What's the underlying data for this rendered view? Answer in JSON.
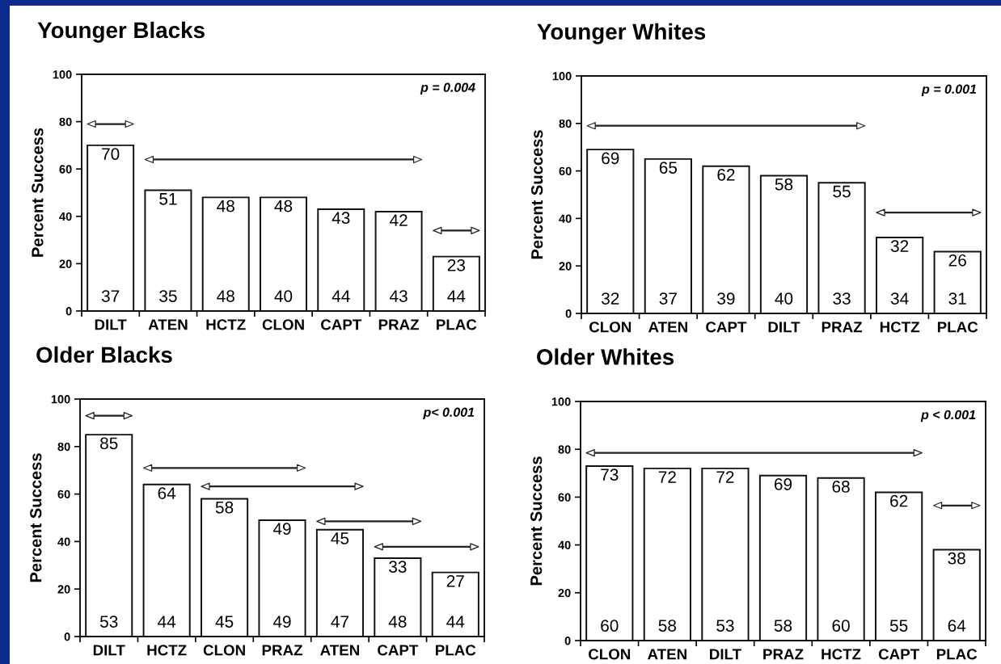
{
  "chart_data": [
    {
      "type": "bar",
      "title": "Younger Blacks",
      "ylabel": "Percent Success",
      "categories": [
        "DILT",
        "ATEN",
        "HCTZ",
        "CLON",
        "CAPT",
        "PRAZ",
        "PLAC"
      ],
      "values": [
        70,
        51,
        48,
        48,
        43,
        42,
        23
      ],
      "color": "#ffffff",
      "ylim": [
        0,
        100
      ],
      "yticks": [
        0,
        20,
        40,
        60,
        80,
        100
      ],
      "data_labels": true,
      "annotations": [
        "p = 0.004",
        {
          "text": "37",
          "x": "DILT",
          "y": 0
        },
        {
          "text": "35",
          "x": "ATEN",
          "y": 0
        },
        {
          "text": "48",
          "x": "HCTZ",
          "y": 0
        },
        {
          "text": "40",
          "x": "CLON",
          "y": 0
        },
        {
          "text": "44",
          "x": "CAPT",
          "y": 0
        },
        {
          "text": "43",
          "x": "PRAZ",
          "y": 0
        },
        {
          "text": "44",
          "x": "PLAC",
          "y": 0
        }
      ]
    },
    {
      "type": "bar",
      "title": "Younger Whites",
      "ylabel": "Percent Success",
      "categories": [
        "CLON",
        "ATEN",
        "CAPT",
        "DILT",
        "PRAZ",
        "HCTZ",
        "PLAC"
      ],
      "values": [
        69,
        65,
        62,
        58,
        55,
        32,
        26
      ],
      "color": "#ffffff",
      "ylim": [
        0,
        100
      ],
      "yticks": [
        0,
        20,
        40,
        60,
        80,
        100
      ],
      "data_labels": true,
      "annotations": [
        "p = 0.001",
        {
          "text": "32",
          "x": "CLON",
          "y": 0
        },
        {
          "text": "37",
          "x": "ATEN",
          "y": 0
        },
        {
          "text": "39",
          "x": "CAPT",
          "y": 0
        },
        {
          "text": "40",
          "x": "DILT",
          "y": 0
        },
        {
          "text": "33",
          "x": "PRAZ",
          "y": 0
        },
        {
          "text": "34",
          "x": "HCTZ",
          "y": 0
        },
        {
          "text": "31",
          "x": "PLAC",
          "y": 0
        }
      ]
    },
    {
      "type": "bar",
      "title": "Older Blacks",
      "ylabel": "Percent Success",
      "categories": [
        "DILT",
        "HCTZ",
        "CLON",
        "PRAZ",
        "ATEN",
        "CAPT",
        "PLAC"
      ],
      "values": [
        85,
        64,
        58,
        49,
        45,
        33,
        27
      ],
      "color": "#ffffff",
      "ylim": [
        0,
        100
      ],
      "yticks": [
        0,
        20,
        40,
        60,
        80,
        100
      ],
      "data_labels": true,
      "annotations": [
        "p< 0.001",
        {
          "text": "53",
          "x": "DILT",
          "y": 0
        },
        {
          "text": "44",
          "x": "HCTZ",
          "y": 0
        },
        {
          "text": "45",
          "x": "CLON",
          "y": 0
        },
        {
          "text": "49",
          "x": "PRAZ",
          "y": 0
        },
        {
          "text": "47",
          "x": "ATEN",
          "y": 0
        },
        {
          "text": "48",
          "x": "CAPT",
          "y": 0
        },
        {
          "text": "44",
          "x": "PLAC",
          "y": 0
        }
      ]
    },
    {
      "type": "bar",
      "title": "Older Whites",
      "ylabel": "Percent Success",
      "categories": [
        "CLON",
        "ATEN",
        "DILT",
        "PRAZ",
        "HCTZ",
        "CAPT",
        "PLAC"
      ],
      "values": [
        73,
        72,
        72,
        69,
        68,
        62,
        38
      ],
      "color": "#ffffff",
      "ylim": [
        0,
        100
      ],
      "yticks": [
        0,
        20,
        40,
        60,
        80,
        100
      ],
      "data_labels": true,
      "annotations": [
        "p < 0.001",
        {
          "text": "60",
          "x": "CLON",
          "y": 0
        },
        {
          "text": "58",
          "x": "ATEN",
          "y": 0
        },
        {
          "text": "53",
          "x": "DILT",
          "y": 0
        },
        {
          "text": "58",
          "x": "PRAZ",
          "y": 0
        },
        {
          "text": "60",
          "x": "HCTZ",
          "y": 0
        },
        {
          "text": "55",
          "x": "CAPT",
          "y": 0
        },
        {
          "text": "64",
          "x": "PLAC",
          "y": 0
        }
      ]
    }
  ]
}
